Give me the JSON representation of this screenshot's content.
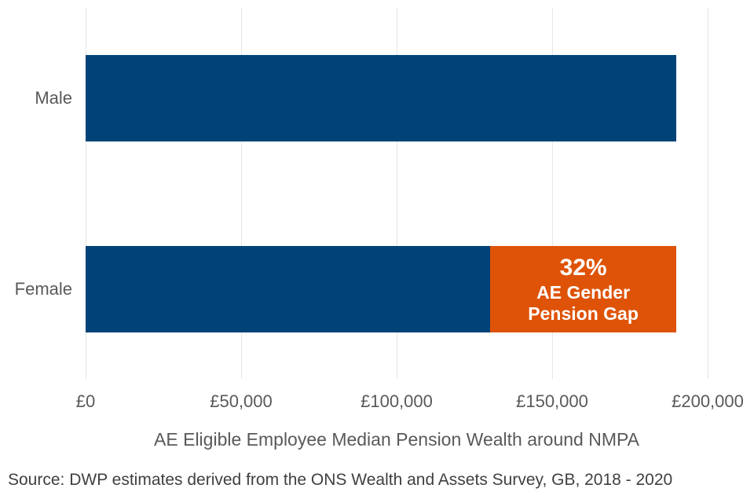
{
  "chart_data": {
    "type": "bar",
    "orientation": "horizontal",
    "xlabel": "AE Eligible Employee Median Pension Wealth around NMPA",
    "xlim": [
      0,
      200000
    ],
    "grid": true,
    "legend": "none",
    "categories": [
      "Male",
      "Female"
    ],
    "values": [
      190000,
      130000
    ],
    "x_ticks": [
      {
        "value": 0,
        "label": "£0"
      },
      {
        "value": 50000,
        "label": "£50,000"
      },
      {
        "value": 100000,
        "label": "£100,000"
      },
      {
        "value": 150000,
        "label": "£150,000"
      },
      {
        "value": 200000,
        "label": "£200,000"
      }
    ],
    "annotation": {
      "percent": "32%",
      "line2": "AE Gender",
      "line3": "Pension Gap",
      "span_from": 130000,
      "span_to": 190000
    },
    "colors": {
      "bar": "#004377",
      "gap": "#DE5307",
      "gridline": "#E5E5E5",
      "axis_text": "#595959",
      "source_text": "#404040",
      "annotation_text": "#FFFFFF"
    }
  },
  "source_note": "Source: DWP estimates derived from the ONS Wealth and Assets Survey, GB, 2018 - 2020"
}
